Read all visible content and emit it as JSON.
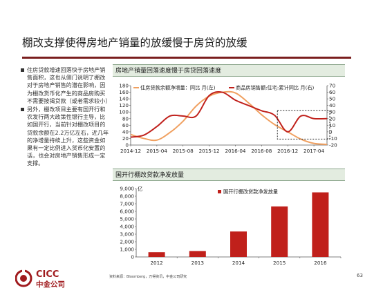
{
  "title": "棚改支撑使得房地产销量的放缓慢于房贷的放缓",
  "bullets": [
    "住房贷款增速回落快于房地产销售面积，这也从侧门说明了棚改对于房地产销售的潜在影响，因为棚改货币化产生的商品房购买不需要按揭贷款（或者需求较小）",
    "另外，棚改项目主要有国开行和农发行两大政策性银行主导，比如国开行，当前针对棚改项目的贷款余额在2.2万亿左右，近几年的净增量持续上升，这些资金如果有一定比例进入货币化安置的话，也会对房地产销售形成一定支撑。"
  ],
  "chart_data": [
    {
      "type": "line",
      "title": "房地产销量回落速度慢于房贷回落速度",
      "x": [
        "2014-12",
        "2015-02",
        "2015-04",
        "2015-06",
        "2015-08",
        "2015-10",
        "2015-12",
        "2016-02",
        "2016-04",
        "2016-06",
        "2016-08",
        "2016-10",
        "2016-12",
        "2017-02",
        "2017-04",
        "2017-05"
      ],
      "x_ticks": [
        "2014-12",
        "2015-04",
        "2015-08",
        "2015-12",
        "2016-04",
        "2016-08",
        "2016-12",
        "2017-04"
      ],
      "series": [
        {
          "name": "住房贷款余额净增量：同比 月(左)",
          "axis": "left",
          "color": "#f0a060",
          "values": [
            32,
            20,
            15,
            38,
            72,
            118,
            148,
            160,
            158,
            128,
            92,
            62,
            40,
            18,
            5,
            2
          ]
        },
        {
          "name": "商品房销售额:住宅:累计同比 月(右)",
          "axis": "right",
          "color": "#c0201b",
          "values": [
            -8,
            -5,
            8,
            24,
            24,
            24,
            55,
            60,
            48,
            40,
            32,
            25,
            0,
            24,
            20,
            20
          ]
        }
      ],
      "ylim_left": [
        0,
        180
      ],
      "yticks_left": [
        0,
        20,
        40,
        60,
        80,
        100,
        120,
        140,
        160,
        180
      ],
      "ylim_right": [
        -20,
        70
      ],
      "yticks_right": [
        -20,
        -10,
        0,
        10,
        20,
        30,
        40,
        50,
        60,
        70
      ],
      "legend_placement": "top",
      "annotation": "dotted-box-highlight"
    },
    {
      "type": "bar",
      "title": "国开行棚改贷款净发放量",
      "unit_label": "亿",
      "categories": [
        "2012",
        "2013",
        "2014",
        "2015",
        "2016"
      ],
      "series": [
        {
          "name": "国开行棚改贷款净发放量",
          "color": "#c0201b",
          "values": [
            620,
            780,
            3350,
            6650,
            8500
          ]
        }
      ],
      "ylim": [
        0,
        9000
      ],
      "yticks": [
        0,
        1000,
        2000,
        3000,
        4000,
        5000,
        6000,
        7000,
        8000,
        9000
      ],
      "ytick_labels": [
        "0",
        "1,000",
        "2,000",
        "3,000",
        "4,000",
        "5,000",
        "6,000",
        "7,000",
        "8,000",
        "9,000"
      ],
      "legend_placement": "top-left"
    }
  ],
  "footer": {
    "source": "资料来源：Bloomberg，万得资讯，中金公司研究",
    "page": "63"
  },
  "logo": {
    "text_en": "CICC",
    "text_cn": "中金公司",
    "color": "#a01b1e"
  }
}
